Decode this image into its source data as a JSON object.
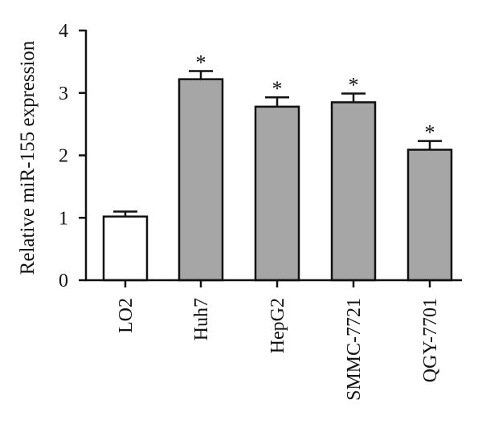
{
  "chart_data": {
    "type": "bar",
    "ylabel": "Relative miR-155 expression",
    "xlabel": "",
    "title": "",
    "ylim": [
      0,
      4
    ],
    "yticks": [
      0,
      1,
      2,
      3,
      4
    ],
    "yticks_text": [
      "0",
      "1",
      "2",
      "3",
      "4"
    ],
    "categories": [
      "LO2",
      "Huh7",
      "HepG2",
      "SMMC-7721",
      "QGY-7701"
    ],
    "values": [
      1.02,
      3.22,
      2.78,
      2.85,
      2.09
    ],
    "errors": [
      0.08,
      0.13,
      0.15,
      0.14,
      0.14
    ],
    "significance": [
      "",
      "*",
      "*",
      "*",
      "*"
    ],
    "bar_colors": [
      "#ffffff",
      "#a6a6a6",
      "#a6a6a6",
      "#a6a6a6",
      "#a6a6a6"
    ],
    "edge_color": "#111111",
    "grid": false,
    "legend": "none"
  }
}
